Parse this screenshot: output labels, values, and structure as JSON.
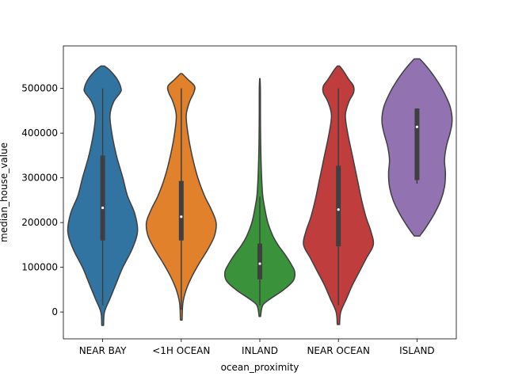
{
  "chart_data": {
    "type": "violin",
    "xlabel": "ocean_proximity",
    "ylabel": "median_house_value",
    "ylim": [
      -60000,
      595000
    ],
    "yticks": [
      0,
      100000,
      200000,
      300000,
      400000,
      500000
    ],
    "ytick_labels": [
      "0",
      "100000",
      "200000",
      "300000",
      "400000",
      "500000"
    ],
    "categories": [
      "NEAR BAY",
      "<1H OCEAN",
      "INLAND",
      "NEAR OCEAN",
      "ISLAND"
    ],
    "grid": false,
    "series": [
      {
        "category": "NEAR BAY",
        "color": "#3274a1",
        "whisker_low": 15000,
        "q1": 160000,
        "median": 233000,
        "q3": 350000,
        "whisker_high": 500000,
        "extent": [
          -30000,
          550000
        ],
        "density_y": [
          -30000,
          0,
          30000,
          60000,
          100000,
          140000,
          180000,
          220000,
          260000,
          300000,
          350000,
          400000,
          440000,
          470000,
          490000,
          500000,
          520000,
          540000,
          550000
        ],
        "density_w": [
          0.01,
          0.02,
          0.08,
          0.14,
          0.22,
          0.32,
          0.38,
          0.35,
          0.27,
          0.22,
          0.15,
          0.1,
          0.08,
          0.12,
          0.19,
          0.2,
          0.16,
          0.08,
          0.02
        ]
      },
      {
        "category": "<1H OCEAN",
        "color": "#e1812c",
        "whisker_low": 5000,
        "q1": 160000,
        "median": 213000,
        "q3": 293000,
        "whisker_high": 500000,
        "extent": [
          -18000,
          533000
        ],
        "density_y": [
          -18000,
          20000,
          50000,
          80000,
          110000,
          140000,
          170000,
          200000,
          230000,
          260000,
          300000,
          350000,
          400000,
          440000,
          470000,
          490000,
          505000,
          520000,
          533000
        ],
        "density_w": [
          0.01,
          0.02,
          0.06,
          0.13,
          0.22,
          0.32,
          0.4,
          0.42,
          0.36,
          0.28,
          0.2,
          0.13,
          0.08,
          0.06,
          0.1,
          0.15,
          0.16,
          0.08,
          0.01
        ]
      },
      {
        "category": "INLAND",
        "color": "#3a923a",
        "whisker_low": 15000,
        "q1": 73000,
        "median": 108000,
        "q3": 153000,
        "whisker_high": 258000,
        "extent": [
          -10000,
          522000
        ],
        "density_y": [
          -10000,
          15000,
          30000,
          50000,
          70000,
          90000,
          110000,
          130000,
          150000,
          170000,
          200000,
          230000,
          260000,
          300000,
          350000,
          400000,
          450000,
          490000,
          510000,
          522000
        ],
        "density_w": [
          0.01,
          0.04,
          0.15,
          0.33,
          0.46,
          0.48,
          0.42,
          0.34,
          0.25,
          0.18,
          0.11,
          0.07,
          0.04,
          0.025,
          0.015,
          0.01,
          0.008,
          0.008,
          0.006,
          0.002
        ]
      },
      {
        "category": "NEAR OCEAN",
        "color": "#c03d3e",
        "whisker_low": 15000,
        "q1": 147000,
        "median": 229000,
        "q3": 327000,
        "whisker_high": 500000,
        "extent": [
          -28000,
          550000
        ],
        "density_y": [
          -28000,
          0,
          30000,
          60000,
          90000,
          120000,
          150000,
          180000,
          210000,
          250000,
          300000,
          350000,
          400000,
          440000,
          470000,
          490000,
          505000,
          520000,
          540000,
          550000
        ],
        "density_w": [
          0.01,
          0.02,
          0.07,
          0.12,
          0.18,
          0.24,
          0.3,
          0.28,
          0.24,
          0.2,
          0.16,
          0.12,
          0.08,
          0.06,
          0.09,
          0.13,
          0.13,
          0.09,
          0.04,
          0.01
        ]
      },
      {
        "category": "ISLAND",
        "color": "#9372b2",
        "whisker_low": 287000,
        "q1": 295000,
        "median": 414000,
        "q3": 455000,
        "whisker_high": 455000,
        "extent": [
          170000,
          566000
        ],
        "density_y": [
          170000,
          190000,
          220000,
          250000,
          280000,
          310000,
          340000,
          370000,
          400000,
          420000,
          440000,
          460000,
          480000,
          500000,
          520000,
          540000,
          555000,
          566000
        ],
        "density_w": [
          0.03,
          0.1,
          0.19,
          0.26,
          0.3,
          0.31,
          0.3,
          0.32,
          0.36,
          0.38,
          0.38,
          0.36,
          0.32,
          0.27,
          0.21,
          0.14,
          0.08,
          0.03
        ]
      }
    ]
  }
}
